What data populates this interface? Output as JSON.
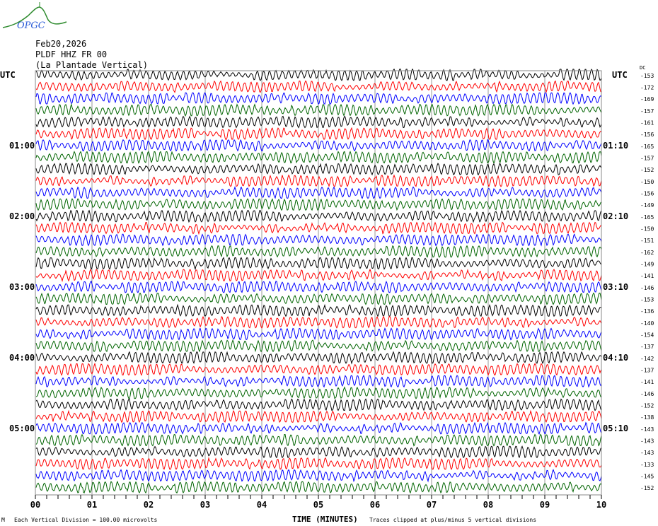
{
  "logo": {
    "text": "OPGC",
    "colors": {
      "arc": "#2e8b2e",
      "text": "#2a5bd7"
    }
  },
  "header": {
    "date": "Feb20,2026",
    "station": "PLDF HHZ FR 00",
    "station_name": "(La Plantade Vertical)"
  },
  "footer": {
    "scale_note": "Each Vertical Division =  100.00 microvolts",
    "clip_note": "Traces clipped at plus/minus 5 vertical divisions",
    "corner_mark": "M"
  },
  "chart_data": {
    "type": "line",
    "title": "",
    "xlabel": "TIME (MINUTES)",
    "xlim": [
      0,
      10
    ],
    "x_ticks": [
      "00",
      "01",
      "02",
      "03",
      "04",
      "05",
      "06",
      "07",
      "08",
      "09",
      "10"
    ],
    "grid": "vertical lines every minute",
    "left_axis": {
      "label": "UTC",
      "hour_labels": [
        "01:00",
        "02:00",
        "03:00",
        "04:00",
        "05:00"
      ]
    },
    "right_axis": {
      "label": "UTC",
      "hour_labels": [
        "01:10",
        "02:10",
        "03:10",
        "04:10",
        "05:10"
      ],
      "dc_label": "DC"
    },
    "trace_colors": [
      "#000000",
      "#ff0000",
      "#0000ff",
      "#006400"
    ],
    "trace_minutes_per_line": 10,
    "dc_offsets": [
      -153,
      -172,
      -169,
      -157,
      -161,
      -156,
      -165,
      -157,
      -152,
      -150,
      -156,
      -149,
      -165,
      -150,
      -151,
      -162,
      -149,
      -141,
      -146,
      -153,
      -136,
      -140,
      -154,
      -137,
      -142,
      -137,
      -141,
      -146,
      -152,
      -138,
      -143,
      -143,
      -143,
      -133,
      -145,
      -152
    ]
  }
}
